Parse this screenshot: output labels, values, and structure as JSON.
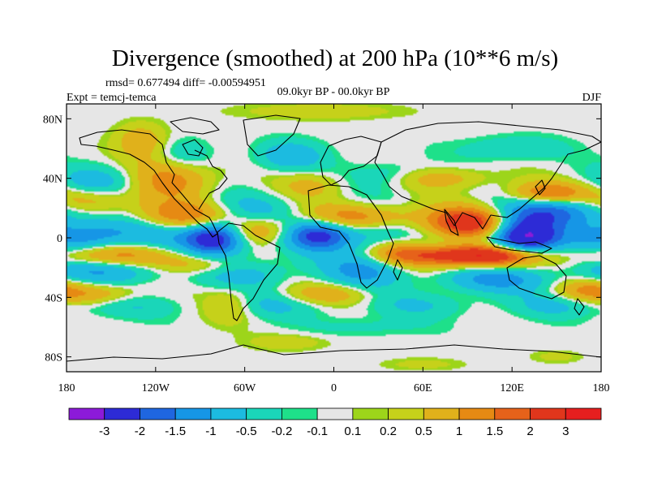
{
  "chart_data": {
    "type": "heatmap",
    "title": "Divergence (smoothed) at 200 hPa (10**6 m/s)",
    "stats_line": "rmsd= 0.677494 diff= -0.00594951",
    "experiment": "Expt = temcj-temca",
    "period": "09.0kyr BP - 00.0kyr BP",
    "season": "DJF",
    "x_axis": {
      "range": [
        -180,
        180
      ],
      "ticks": [
        {
          "v": -180,
          "label": "180"
        },
        {
          "v": -120,
          "label": "120W"
        },
        {
          "v": -60,
          "label": "60W"
        },
        {
          "v": 0,
          "label": "0"
        },
        {
          "v": 60,
          "label": "60E"
        },
        {
          "v": 120,
          "label": "120E"
        },
        {
          "v": 180,
          "label": "180"
        }
      ]
    },
    "y_axis": {
      "range": [
        -90,
        90
      ],
      "ticks": [
        {
          "v": 80,
          "label": "80N"
        },
        {
          "v": 40,
          "label": "40N"
        },
        {
          "v": 0,
          "label": "0"
        },
        {
          "v": -40,
          "label": "40S"
        },
        {
          "v": -80,
          "label": "80S"
        }
      ]
    },
    "colorbar": {
      "colors": [
        "#8c1ad9",
        "#2d2bd6",
        "#1f66e0",
        "#1696e6",
        "#1cbbe0",
        "#1ad6b9",
        "#1ee08a",
        "#e6e6e6",
        "#9dd51a",
        "#c6d11a",
        "#e0b11b",
        "#e68a13",
        "#e6621a",
        "#e0361c",
        "#e61f1f"
      ],
      "labels": [
        "-3",
        "-2",
        "-1.5",
        "-1",
        "-0.5",
        "-0.2",
        "-0.1",
        "0.1",
        "0.2",
        "0.5",
        "1",
        "1.5",
        "2",
        "3"
      ],
      "levels": [
        -3,
        -2,
        -1.5,
        -1,
        -0.5,
        -0.2,
        -0.1,
        0.1,
        0.2,
        0.5,
        1,
        1.5,
        2,
        3
      ]
    },
    "anomalies": [
      {
        "lon": -80,
        "lat": 0,
        "v": -2.6,
        "w": 14,
        "h": 8
      },
      {
        "lon": -10,
        "lat": 2,
        "v": -2.3,
        "w": 16,
        "h": 7
      },
      {
        "lon": 128,
        "lat": 0,
        "v": -3.2,
        "w": 16,
        "h": 9
      },
      {
        "lon": 150,
        "lat": 18,
        "v": -1.6,
        "w": 25,
        "h": 7
      },
      {
        "lon": 110,
        "lat": -28,
        "v": -1.1,
        "w": 28,
        "h": 6
      },
      {
        "lon": -130,
        "lat": 5,
        "v": -0.9,
        "w": 40,
        "h": 8
      },
      {
        "lon": -170,
        "lat": 0,
        "v": -1.0,
        "w": 20,
        "h": 7
      },
      {
        "lon": -150,
        "lat": -22,
        "v": -1.0,
        "w": 30,
        "h": 6
      },
      {
        "lon": -60,
        "lat": -22,
        "v": -0.8,
        "w": 25,
        "h": 8
      },
      {
        "lon": 20,
        "lat": -22,
        "v": -1.0,
        "w": 20,
        "h": 8
      },
      {
        "lon": 30,
        "lat": 0,
        "v": -0.8,
        "w": 15,
        "h": 12
      },
      {
        "lon": -60,
        "lat": 18,
        "v": -0.7,
        "w": 25,
        "h": 8
      },
      {
        "lon": -155,
        "lat": 38,
        "v": -0.8,
        "w": 20,
        "h": 8
      },
      {
        "lon": -100,
        "lat": 55,
        "v": -0.6,
        "w": 14,
        "h": 8
      },
      {
        "lon": -30,
        "lat": 55,
        "v": -0.9,
        "w": 16,
        "h": 7
      },
      {
        "lon": 40,
        "lat": 42,
        "v": -0.6,
        "w": 18,
        "h": 6
      },
      {
        "lon": 120,
        "lat": 60,
        "v": -0.5,
        "w": 25,
        "h": 6
      },
      {
        "lon": -40,
        "lat": -45,
        "v": -0.6,
        "w": 25,
        "h": 6
      },
      {
        "lon": 60,
        "lat": -45,
        "v": -0.5,
        "w": 25,
        "h": 6
      },
      {
        "lon": -140,
        "lat": -45,
        "v": -0.5,
        "w": 25,
        "h": 6
      },
      {
        "lon": 150,
        "lat": -45,
        "v": -0.6,
        "w": 20,
        "h": 6
      },
      {
        "lon": 20,
        "lat": -60,
        "v": -0.3,
        "w": 30,
        "h": 5
      },
      {
        "lon": 90,
        "lat": 10,
        "v": 2.6,
        "w": 18,
        "h": 7
      },
      {
        "lon": 110,
        "lat": -12,
        "v": 2.6,
        "w": 22,
        "h": 5
      },
      {
        "lon": 75,
        "lat": -12,
        "v": 1.8,
        "w": 25,
        "h": 5
      },
      {
        "lon": 40,
        "lat": -10,
        "v": 1.1,
        "w": 15,
        "h": 6
      },
      {
        "lon": 20,
        "lat": 14,
        "v": 1.4,
        "w": 28,
        "h": 6
      },
      {
        "lon": -100,
        "lat": 14,
        "v": 1.8,
        "w": 25,
        "h": 7
      },
      {
        "lon": -50,
        "lat": 5,
        "v": 1.2,
        "w": 18,
        "h": 6
      },
      {
        "lon": -90,
        "lat": -18,
        "v": 1.1,
        "w": 22,
        "h": 5
      },
      {
        "lon": -150,
        "lat": -12,
        "v": 1.2,
        "w": 30,
        "h": 5
      },
      {
        "lon": -165,
        "lat": 25,
        "v": 1.0,
        "w": 20,
        "h": 6
      },
      {
        "lon": -110,
        "lat": 40,
        "v": 1.3,
        "w": 20,
        "h": 10
      },
      {
        "lon": -130,
        "lat": 65,
        "v": 0.9,
        "w": 12,
        "h": 8
      },
      {
        "lon": -15,
        "lat": 35,
        "v": 0.6,
        "w": 15,
        "h": 6
      },
      {
        "lon": 70,
        "lat": 40,
        "v": 0.8,
        "w": 25,
        "h": 5
      },
      {
        "lon": 145,
        "lat": 30,
        "v": 1.6,
        "w": 18,
        "h": 5
      },
      {
        "lon": 170,
        "lat": -35,
        "v": 1.0,
        "w": 15,
        "h": 5
      },
      {
        "lon": -160,
        "lat": -38,
        "v": 1.0,
        "w": 20,
        "h": 5
      },
      {
        "lon": -5,
        "lat": -38,
        "v": 0.9,
        "w": 20,
        "h": 5
      },
      {
        "lon": -70,
        "lat": -45,
        "v": 0.7,
        "w": 12,
        "h": 8
      },
      {
        "lon": -30,
        "lat": -70,
        "v": 0.4,
        "w": 20,
        "h": 4
      },
      {
        "lon": -10,
        "lat": 85,
        "v": 0.4,
        "w": 40,
        "h": 4
      },
      {
        "lon": 60,
        "lat": -85,
        "v": 0.3,
        "w": 20,
        "h": 3
      },
      {
        "lon": 150,
        "lat": -80,
        "v": 0.3,
        "w": 12,
        "h": 3
      }
    ]
  }
}
